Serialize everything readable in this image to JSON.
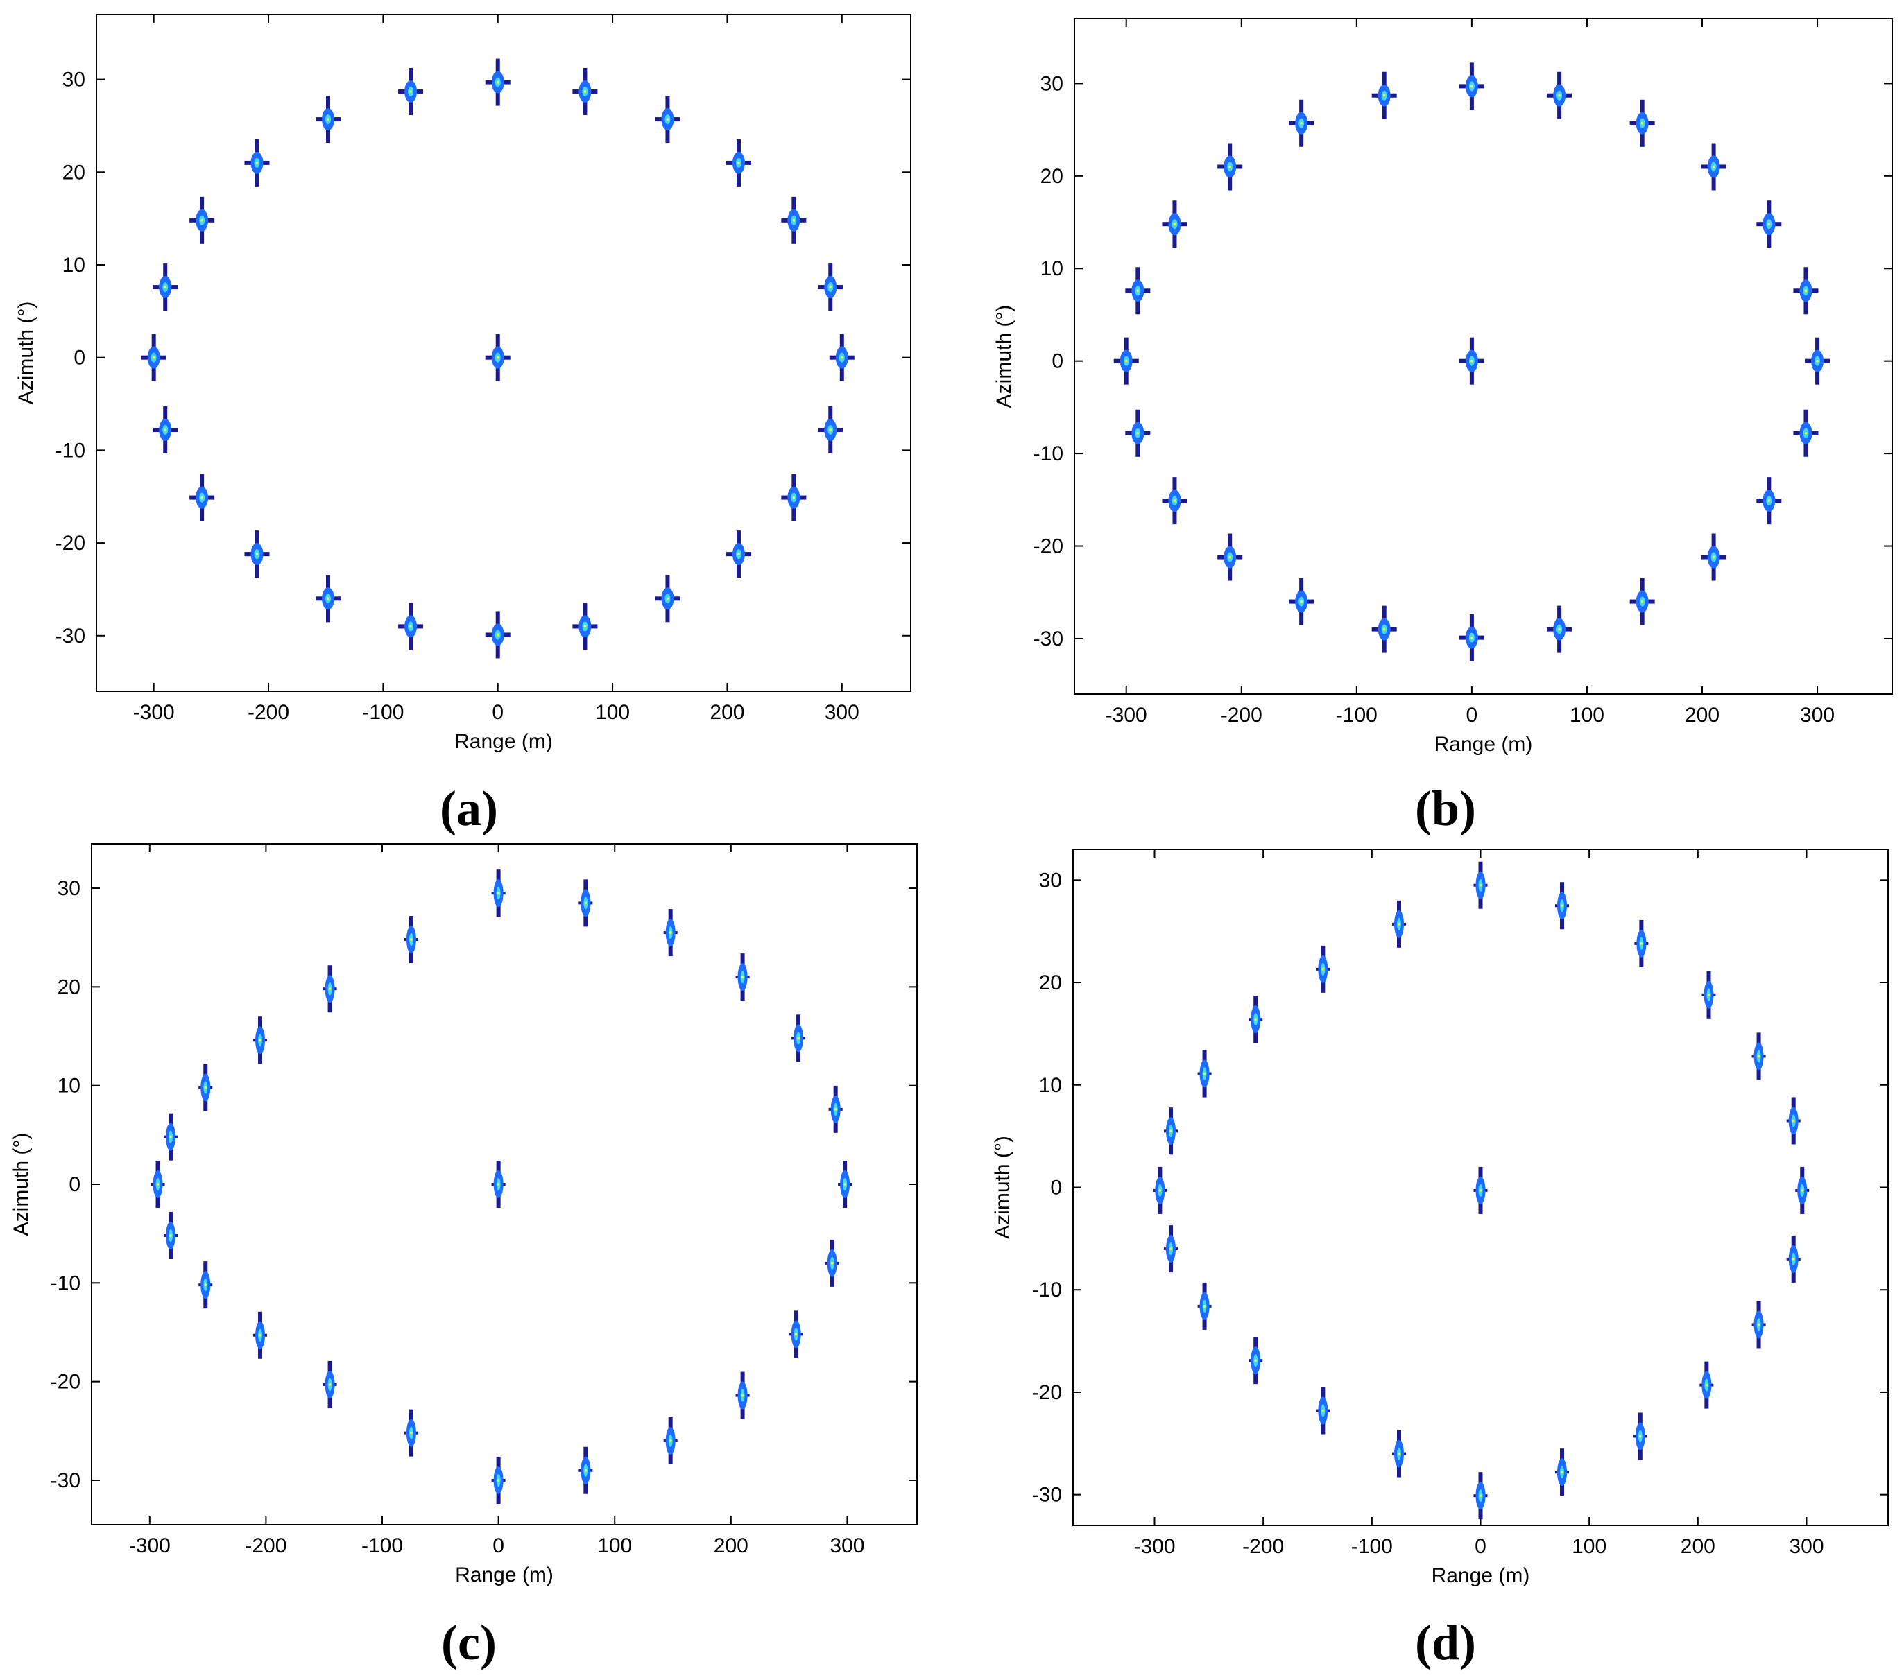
{
  "figure": {
    "colors": {
      "outer": "#1a1a8c",
      "mid": "#1e6cff",
      "inner": "#40d8ff",
      "core": "#e8ff40",
      "axis": "#000000",
      "background": "#ffffff"
    }
  },
  "chart_data": [
    {
      "type": "scatter",
      "panel_label": "(a)",
      "xlabel": "Range (m)",
      "ylabel": "Azimuth (°)",
      "xlim": [
        -350,
        360
      ],
      "ylim": [
        -36,
        37
      ],
      "xticks": [
        -300,
        -200,
        -100,
        0,
        100,
        200,
        300
      ],
      "yticks": [
        -30,
        -20,
        -10,
        0,
        10,
        20,
        30
      ],
      "grid": false,
      "mark_style": "cross",
      "points": [
        {
          "x": 0,
          "y": 0
        },
        {
          "x": 0,
          "y": 29.7
        },
        {
          "x": 76,
          "y": 28.7
        },
        {
          "x": 148,
          "y": 25.7
        },
        {
          "x": 210,
          "y": 21.0
        },
        {
          "x": 258,
          "y": 14.8
        },
        {
          "x": 290,
          "y": 7.6
        },
        {
          "x": 300,
          "y": 0
        },
        {
          "x": 290,
          "y": -7.8
        },
        {
          "x": 258,
          "y": -15.1
        },
        {
          "x": 210,
          "y": -21.2
        },
        {
          "x": 148,
          "y": -26.0
        },
        {
          "x": 76,
          "y": -29.0
        },
        {
          "x": 0,
          "y": -29.9
        },
        {
          "x": -76,
          "y": -29.0
        },
        {
          "x": -148,
          "y": -26.0
        },
        {
          "x": -210,
          "y": -21.2
        },
        {
          "x": -258,
          "y": -15.1
        },
        {
          "x": -290,
          "y": -7.8
        },
        {
          "x": -300,
          "y": 0
        },
        {
          "x": -290,
          "y": 7.6
        },
        {
          "x": -258,
          "y": 14.8
        },
        {
          "x": -210,
          "y": 21.0
        },
        {
          "x": -148,
          "y": 25.7
        },
        {
          "x": -76,
          "y": 28.7
        }
      ]
    },
    {
      "type": "scatter",
      "panel_label": "(b)",
      "xlabel": "Range (m)",
      "ylabel": "Azimuth (°)",
      "xlim": [
        -345,
        365
      ],
      "ylim": [
        -36,
        37
      ],
      "xticks": [
        -300,
        -200,
        -100,
        0,
        100,
        200,
        300
      ],
      "yticks": [
        -30,
        -20,
        -10,
        0,
        10,
        20,
        30
      ],
      "grid": false,
      "mark_style": "cross",
      "points": [
        {
          "x": 0,
          "y": 0
        },
        {
          "x": 0,
          "y": 29.7
        },
        {
          "x": 76,
          "y": 28.7
        },
        {
          "x": 148,
          "y": 25.7
        },
        {
          "x": 210,
          "y": 21.0
        },
        {
          "x": 258,
          "y": 14.8
        },
        {
          "x": 290,
          "y": 7.6
        },
        {
          "x": 300,
          "y": 0
        },
        {
          "x": 290,
          "y": -7.8
        },
        {
          "x": 258,
          "y": -15.1
        },
        {
          "x": 210,
          "y": -21.2
        },
        {
          "x": 148,
          "y": -26.0
        },
        {
          "x": 76,
          "y": -29.0
        },
        {
          "x": 0,
          "y": -29.9
        },
        {
          "x": -76,
          "y": -29.0
        },
        {
          "x": -148,
          "y": -26.0
        },
        {
          "x": -210,
          "y": -21.2
        },
        {
          "x": -258,
          "y": -15.1
        },
        {
          "x": -290,
          "y": -7.8
        },
        {
          "x": -300,
          "y": 0
        },
        {
          "x": -290,
          "y": 7.6
        },
        {
          "x": -258,
          "y": 14.8
        },
        {
          "x": -210,
          "y": 21.0
        },
        {
          "x": -148,
          "y": 25.7
        },
        {
          "x": -76,
          "y": 28.7
        }
      ]
    },
    {
      "type": "scatter",
      "panel_label": "(c)",
      "xlabel": "Range (m)",
      "ylabel": "Azimuth (°)",
      "xlim": [
        -350,
        360
      ],
      "ylim": [
        -34.5,
        34.5
      ],
      "xticks": [
        -300,
        -200,
        -100,
        0,
        100,
        200,
        300
      ],
      "yticks": [
        -30,
        -20,
        -10,
        0,
        10,
        20,
        30
      ],
      "grid": false,
      "mark_style": "vertical",
      "points": [
        {
          "x": 0,
          "y": 0
        },
        {
          "x": 0,
          "y": 29.5
        },
        {
          "x": 75,
          "y": 28.5
        },
        {
          "x": 148,
          "y": 25.5
        },
        {
          "x": 210,
          "y": 21.0
        },
        {
          "x": 258,
          "y": 14.8
        },
        {
          "x": 290,
          "y": 7.6
        },
        {
          "x": 298,
          "y": 0
        },
        {
          "x": 287,
          "y": -8.0
        },
        {
          "x": 256,
          "y": -15.2
        },
        {
          "x": 210,
          "y": -21.4
        },
        {
          "x": 148,
          "y": -26.0
        },
        {
          "x": 75,
          "y": -29.0
        },
        {
          "x": 0,
          "y": -30.0
        },
        {
          "x": -75,
          "y": -25.2
        },
        {
          "x": -145,
          "y": -20.3
        },
        {
          "x": -205,
          "y": -15.3
        },
        {
          "x": -252,
          "y": -10.2
        },
        {
          "x": -282,
          "y": -5.2
        },
        {
          "x": -293,
          "y": 0
        },
        {
          "x": -282,
          "y": 4.8
        },
        {
          "x": -252,
          "y": 9.8
        },
        {
          "x": -205,
          "y": 14.6
        },
        {
          "x": -145,
          "y": 19.8
        },
        {
          "x": -75,
          "y": 24.8
        }
      ]
    },
    {
      "type": "scatter",
      "panel_label": "(d)",
      "xlabel": "Range (m)",
      "ylabel": "Azimuth (°)",
      "xlim": [
        -375,
        375
      ],
      "ylim": [
        -33,
        33
      ],
      "xticks": [
        -300,
        -200,
        -100,
        0,
        100,
        200,
        300
      ],
      "yticks": [
        -30,
        -20,
        -10,
        0,
        10,
        20,
        30
      ],
      "grid": false,
      "mark_style": "vertical",
      "points": [
        {
          "x": 0,
          "y": -0.3
        },
        {
          "x": 0,
          "y": 29.5
        },
        {
          "x": 75,
          "y": 27.5
        },
        {
          "x": 148,
          "y": 23.8
        },
        {
          "x": 210,
          "y": 18.8
        },
        {
          "x": 256,
          "y": 12.8
        },
        {
          "x": 288,
          "y": 6.5
        },
        {
          "x": 296,
          "y": -0.3
        },
        {
          "x": 288,
          "y": -7.0
        },
        {
          "x": 256,
          "y": -13.4
        },
        {
          "x": 208,
          "y": -19.3
        },
        {
          "x": 147,
          "y": -24.3
        },
        {
          "x": 75,
          "y": -27.8
        },
        {
          "x": 0,
          "y": -30.1
        },
        {
          "x": -75,
          "y": -26.0
        },
        {
          "x": -145,
          "y": -21.8
        },
        {
          "x": -207,
          "y": -16.9
        },
        {
          "x": -254,
          "y": -11.6
        },
        {
          "x": -285,
          "y": -6.0
        },
        {
          "x": -295,
          "y": -0.3
        },
        {
          "x": -285,
          "y": 5.5
        },
        {
          "x": -254,
          "y": 11.1
        },
        {
          "x": -207,
          "y": 16.4
        },
        {
          "x": -145,
          "y": 21.3
        },
        {
          "x": -75,
          "y": 25.7
        }
      ]
    }
  ]
}
